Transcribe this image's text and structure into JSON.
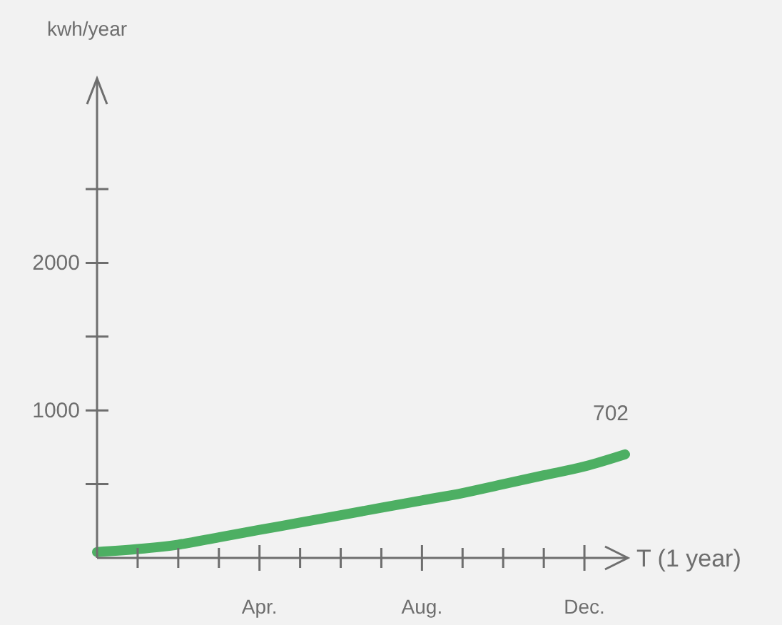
{
  "chart_data": {
    "type": "line",
    "xlabel": "T (1 year)",
    "ylabel": "kwh/year",
    "categories": [
      null,
      null,
      null,
      null,
      "Apr.",
      null,
      null,
      null,
      "Aug.",
      null,
      null,
      null,
      "Dec.",
      null
    ],
    "series": [
      {
        "color": "#4daf63",
        "values": [
          40,
          60,
          90,
          140,
          190,
          240,
          290,
          340,
          390,
          440,
          500,
          560,
          620,
          702
        ]
      }
    ],
    "value_labels": [
      null,
      null,
      null,
      null,
      null,
      null,
      null,
      null,
      null,
      null,
      null,
      null,
      null,
      "702"
    ],
    "ylim": [
      0,
      3250
    ],
    "yticks": [
      {
        "value": 500,
        "label": null
      },
      1000,
      {
        "value": 1500,
        "label": null
      },
      2000,
      {
        "value": 2500,
        "label": null
      }
    ],
    "grid": false,
    "marker": "none",
    "line_style": "solid"
  }
}
